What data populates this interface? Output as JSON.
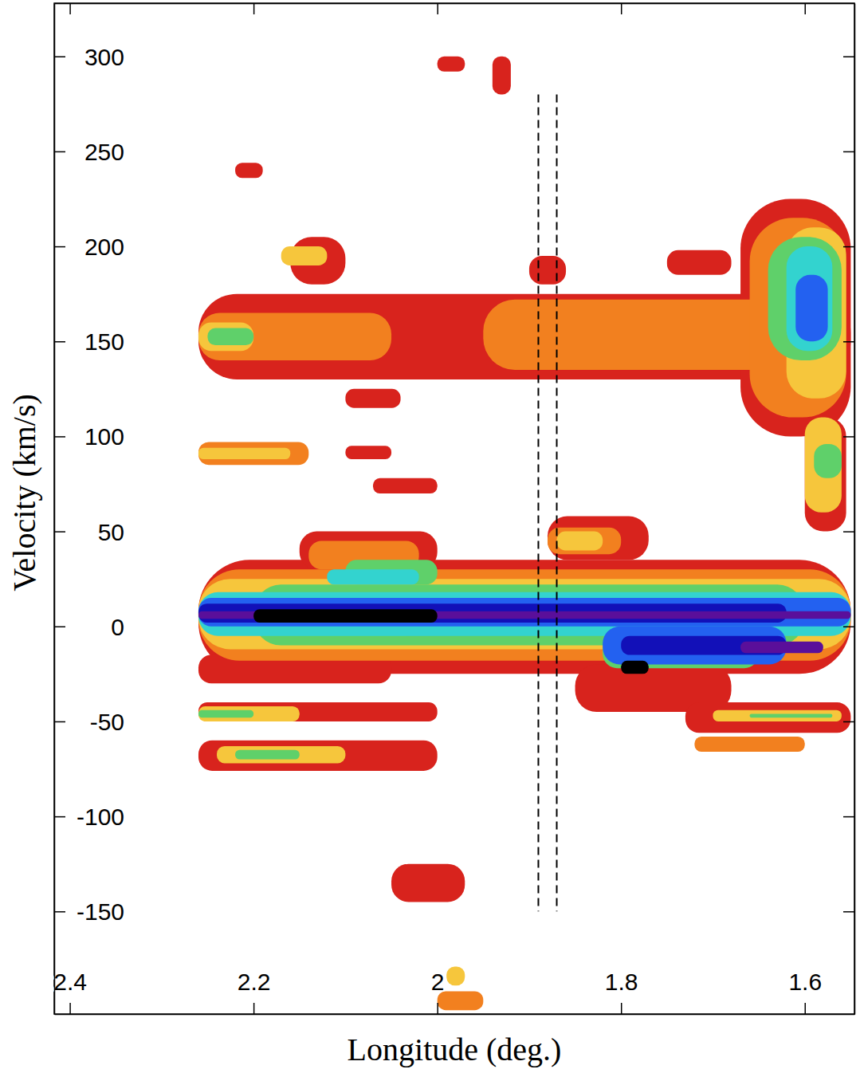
{
  "chart_data": {
    "type": "heatmap",
    "x_label": "Longitude (deg.)",
    "y_label": "Velocity (km/s)",
    "xlim": [
      2.417,
      1.546
    ],
    "ylim": [
      -204,
      328
    ],
    "xticks": [
      2.4,
      2.2,
      2,
      1.8,
      1.6
    ],
    "yticks": [
      -150,
      -100,
      -50,
      0,
      50,
      100,
      150,
      200,
      250,
      300
    ],
    "cells": [
      [
        2.26,
        1.55,
        -25,
        35,
        1
      ],
      [
        2.15,
        2.0,
        30,
        50,
        1
      ],
      [
        1.88,
        1.77,
        35,
        58,
        1
      ],
      [
        1.85,
        1.68,
        -45,
        -20,
        1
      ],
      [
        2.26,
        2.05,
        -30,
        -15,
        1
      ],
      [
        2.26,
        1.55,
        130,
        175,
        1
      ],
      [
        2.16,
        2.1,
        180,
        205,
        1
      ],
      [
        1.67,
        1.55,
        100,
        225,
        1
      ],
      [
        1.6,
        1.555,
        50,
        110,
        1
      ],
      [
        1.75,
        1.68,
        185,
        198,
        1
      ],
      [
        1.9,
        1.86,
        180,
        195,
        1
      ],
      [
        2.1,
        2.05,
        88,
        95,
        1
      ],
      [
        2.07,
        2.0,
        70,
        78,
        1
      ],
      [
        2.26,
        2.0,
        -50,
        -40,
        1
      ],
      [
        2.26,
        2.0,
        -76,
        -60,
        1
      ],
      [
        1.73,
        1.55,
        -56,
        -40,
        1
      ],
      [
        2.05,
        1.97,
        -145,
        -125,
        1
      ],
      [
        2.0,
        1.97,
        292,
        300,
        1
      ],
      [
        1.94,
        1.92,
        280,
        300,
        1
      ],
      [
        2.22,
        2.19,
        236,
        244,
        1
      ],
      [
        2.1,
        2.04,
        115,
        125,
        1
      ],
      [
        2.26,
        1.55,
        -18,
        30,
        2
      ],
      [
        2.14,
        2.02,
        30,
        45,
        2
      ],
      [
        1.88,
        1.8,
        38,
        52,
        2
      ],
      [
        2.26,
        2.05,
        140,
        165,
        2
      ],
      [
        1.95,
        1.6,
        135,
        172,
        2
      ],
      [
        1.66,
        1.555,
        110,
        215,
        2
      ],
      [
        2.26,
        2.14,
        85,
        97,
        2
      ],
      [
        1.72,
        1.6,
        -66,
        -58,
        2
      ],
      [
        2.0,
        1.95,
        -202,
        -192,
        2
      ],
      [
        2.26,
        1.55,
        -12,
        25,
        3
      ],
      [
        1.87,
        1.82,
        40,
        50,
        3
      ],
      [
        2.26,
        2.2,
        145,
        160,
        3
      ],
      [
        2.17,
        2.12,
        190,
        200,
        3
      ],
      [
        1.62,
        1.555,
        120,
        210,
        3
      ],
      [
        1.6,
        1.56,
        60,
        110,
        3
      ],
      [
        2.26,
        2.16,
        88,
        94,
        3
      ],
      [
        2.26,
        2.15,
        -50,
        -42,
        3
      ],
      [
        2.24,
        2.1,
        -72,
        -63,
        3
      ],
      [
        1.7,
        1.56,
        -50,
        -44,
        3
      ],
      [
        1.99,
        1.97,
        -189,
        -179,
        3
      ],
      [
        2.2,
        1.6,
        -10,
        22,
        4
      ],
      [
        2.1,
        2.0,
        22,
        35,
        4
      ],
      [
        1.82,
        1.65,
        -22,
        -5,
        4
      ],
      [
        2.25,
        2.2,
        148,
        157,
        4
      ],
      [
        1.64,
        1.56,
        140,
        205,
        4
      ],
      [
        1.59,
        1.56,
        78,
        96,
        4
      ],
      [
        2.26,
        2.2,
        -48,
        -44,
        4
      ],
      [
        2.22,
        2.15,
        -70,
        -65,
        4
      ],
      [
        1.66,
        1.57,
        -48,
        -46,
        4
      ],
      [
        2.26,
        1.55,
        -5,
        18,
        5
      ],
      [
        2.12,
        2.02,
        22,
        30,
        5
      ],
      [
        1.62,
        1.57,
        145,
        200,
        5
      ],
      [
        2.26,
        1.55,
        0,
        15,
        6
      ],
      [
        1.82,
        1.62,
        -20,
        0,
        6
      ],
      [
        1.61,
        1.575,
        150,
        185,
        6
      ],
      [
        2.26,
        1.62,
        2,
        12,
        7
      ],
      [
        1.8,
        1.62,
        -15,
        -5,
        7
      ],
      [
        2.26,
        1.55,
        4,
        8,
        8
      ],
      [
        1.67,
        1.58,
        -14,
        -8,
        8
      ],
      [
        2.2,
        2.0,
        2,
        9,
        9
      ],
      [
        1.8,
        1.77,
        -25,
        -18,
        9
      ]
    ],
    "vlines": [
      {
        "x": 1.89,
        "y": [
          280,
          -150
        ],
        "line_style": "dashed"
      },
      {
        "x": 1.87,
        "y": [
          280,
          -150
        ],
        "line_style": "dashed"
      }
    ]
  }
}
